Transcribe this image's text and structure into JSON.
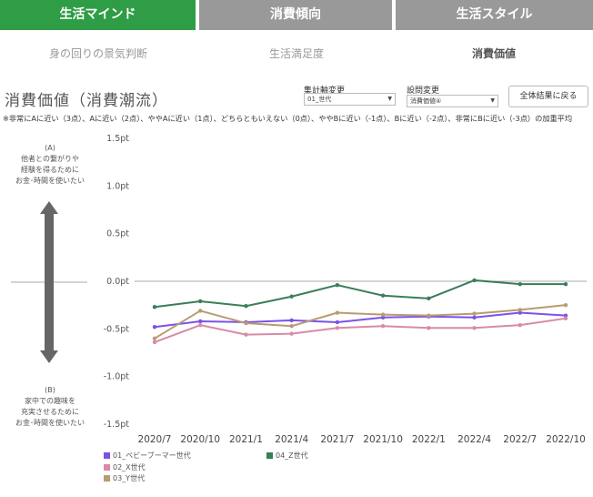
{
  "tabs": [
    {
      "label": "生活マインド",
      "active": true
    },
    {
      "label": "消費傾向",
      "active": false
    },
    {
      "label": "生活スタイル",
      "active": false
    }
  ],
  "subtabs": [
    {
      "label": "身の回りの景気判断",
      "active": false
    },
    {
      "label": "生活満足度",
      "active": false
    },
    {
      "label": "消費価値",
      "active": true
    }
  ],
  "page_title": "消費価値（消費潮流）",
  "controls": {
    "aggregate_label": "集計軸変更",
    "aggregate_value": "01_世代",
    "question_label": "設問変更",
    "question_value": "消費価値④",
    "reset_button": "全体結果に戻る"
  },
  "note": "※非常にAに近い（3点）、Aに近い（2点）、ややAに近い（1点）、どちらともいえない（0点）、ややBに近い（-1点）、Bに近い（-2点）、非常にBに近い（-3点）の加重平均",
  "axis_top": {
    "tag": "(A)",
    "lines": [
      "他者との繋がりや",
      "経験を得るために",
      "お金･時間を使いたい"
    ]
  },
  "axis_bottom": {
    "tag": "(B)",
    "lines": [
      "家中での趣味を",
      "充実させるために",
      "お金･時間を使いたい"
    ]
  },
  "colors": {
    "tab_active": "#2f9d46",
    "tab_inactive": "#999999",
    "arrow": "#666666"
  },
  "chart_data": {
    "type": "line",
    "x": [
      "2020/7",
      "2020/10",
      "2021/1",
      "2021/4",
      "2021/7",
      "2021/10",
      "2022/1",
      "2022/4",
      "2022/7",
      "2022/10"
    ],
    "ytick_labels": [
      "1.5pt",
      "1.0pt",
      "0.5pt",
      "0.0pt",
      "-0.5pt",
      "-1.0pt",
      "-1.5pt"
    ],
    "yticks": [
      1.5,
      1.0,
      0.5,
      0.0,
      -0.5,
      -1.0,
      -1.5
    ],
    "ylim": [
      -1.5,
      1.5
    ],
    "zero_line": true,
    "series": [
      {
        "name": "01_ベビーブーマー世代",
        "color": "#7b52e8",
        "values": [
          -0.48,
          -0.42,
          -0.43,
          -0.41,
          -0.43,
          -0.38,
          -0.37,
          -0.38,
          -0.33,
          -0.36
        ]
      },
      {
        "name": "02_X世代",
        "color": "#d98aa6",
        "values": [
          -0.64,
          -0.46,
          -0.56,
          -0.55,
          -0.49,
          -0.47,
          -0.49,
          -0.49,
          -0.46,
          -0.39
        ]
      },
      {
        "name": "03_Y世代",
        "color": "#b89b72",
        "values": [
          -0.6,
          -0.31,
          -0.44,
          -0.47,
          -0.33,
          -0.35,
          -0.36,
          -0.34,
          -0.3,
          -0.25
        ]
      },
      {
        "name": "04_Z世代",
        "color": "#3a7d5a",
        "values": [
          -0.27,
          -0.21,
          -0.26,
          -0.16,
          -0.04,
          -0.15,
          -0.18,
          0.01,
          -0.03,
          -0.03
        ]
      }
    ]
  }
}
